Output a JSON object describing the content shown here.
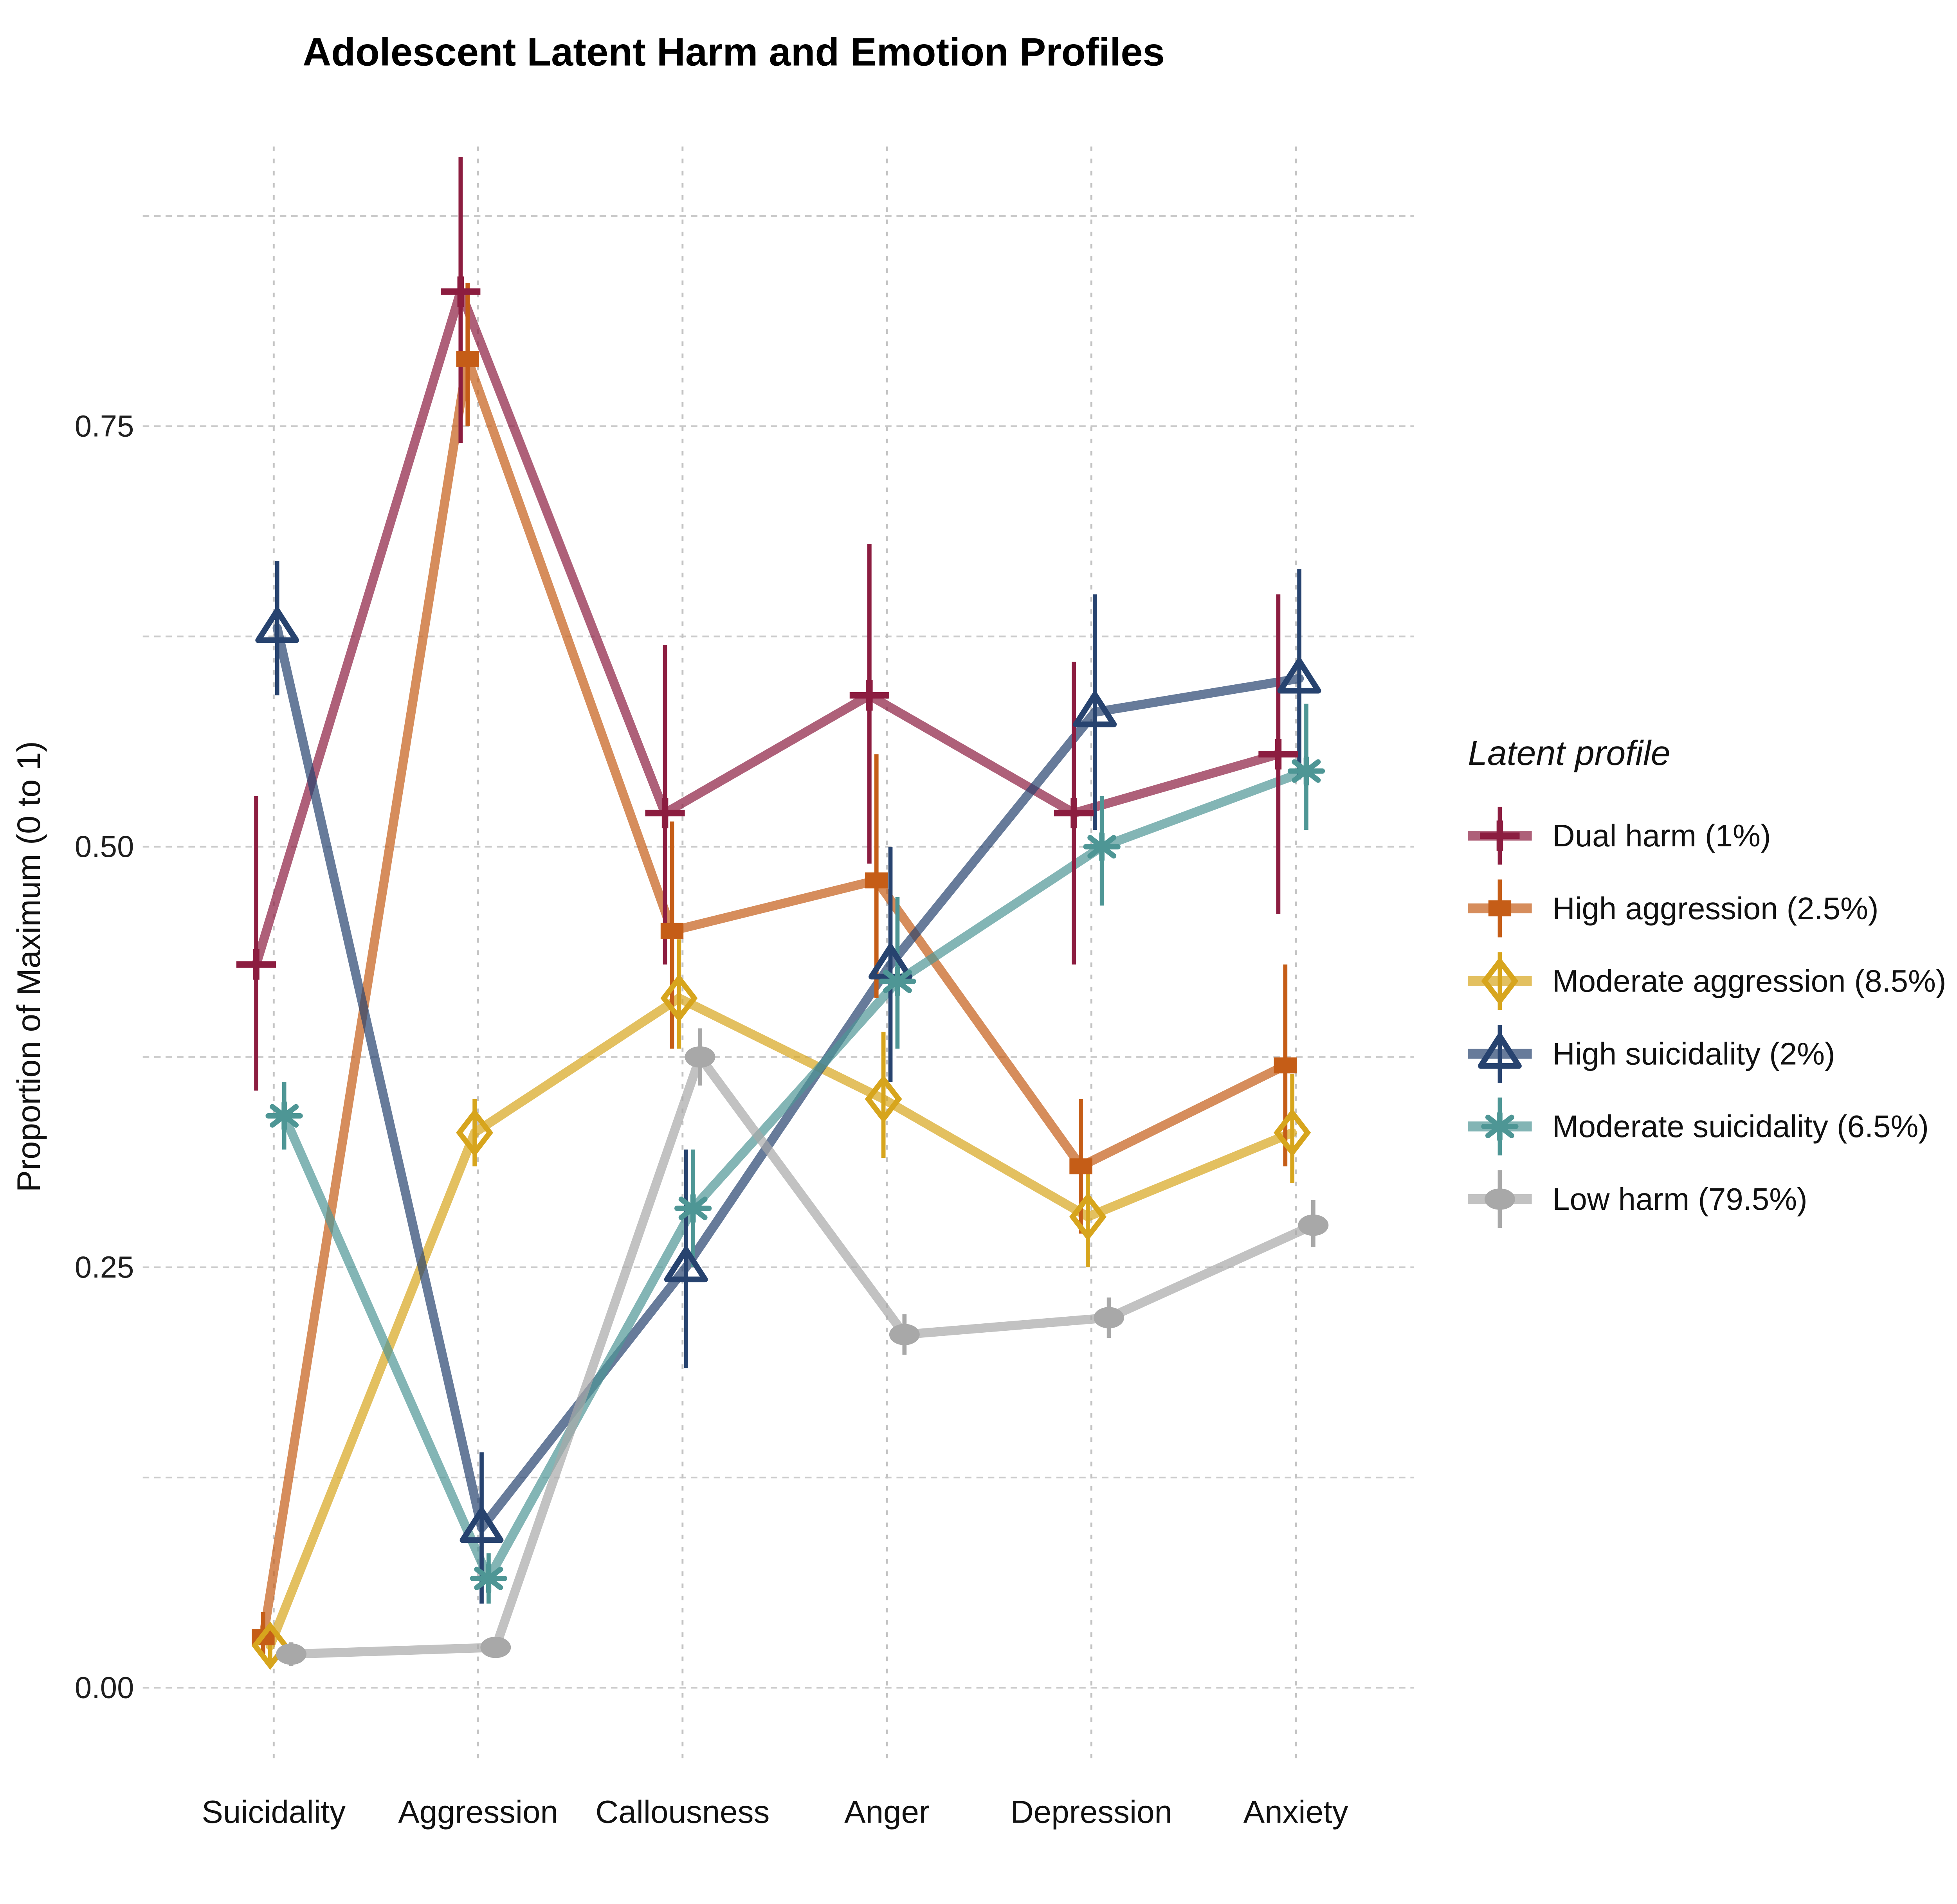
{
  "chart_data": {
    "type": "line",
    "title": "Adolescent Latent Harm and Emotion Profiles",
    "xlabel": "",
    "ylabel": "Proportion of Maximum (0 to 1)",
    "categories": [
      "Suicidality",
      "Aggression",
      "Callousness",
      "Anger",
      "Depression",
      "Anxiety"
    ],
    "y_ticks": [
      {
        "value": 0.0,
        "label": "0.00"
      },
      {
        "value": 0.25,
        "label": "0.25"
      },
      {
        "value": 0.5,
        "label": "0.50"
      },
      {
        "value": 0.75,
        "label": "0.75"
      }
    ],
    "ylim": [
      -0.04,
      0.92
    ],
    "gridlines": {
      "horizontal_step": 0.125,
      "horizontal_max": 0.875,
      "style": "dashed",
      "color_horizontal": "#cbcbcb",
      "color_vertical": "#c3c3c3"
    },
    "legend_title": "Latent profile",
    "legend_position": "right",
    "error_bars": true,
    "series": [
      {
        "name": "Dual harm (1%)",
        "marker": "plus",
        "color": "#8C1D40",
        "values": [
          0.43,
          0.83,
          0.52,
          0.59,
          0.52,
          0.555
        ],
        "ci_low": [
          0.355,
          0.74,
          0.43,
          0.49,
          0.43,
          0.46
        ],
        "ci_high": [
          0.53,
          0.91,
          0.62,
          0.68,
          0.61,
          0.65
        ]
      },
      {
        "name": "High aggression (2.5%)",
        "marker": "square",
        "color": "#C55D17",
        "values": [
          0.03,
          0.79,
          0.45,
          0.48,
          0.31,
          0.37
        ],
        "ci_low": [
          0.02,
          0.75,
          0.38,
          0.41,
          0.27,
          0.31
        ],
        "ci_high": [
          0.045,
          0.835,
          0.515,
          0.555,
          0.35,
          0.43
        ]
      },
      {
        "name": "Moderate aggression (8.5%)",
        "marker": "diamond-open",
        "color": "#D7A51D",
        "values": [
          0.025,
          0.33,
          0.41,
          0.35,
          0.28,
          0.33
        ],
        "ci_low": [
          0.015,
          0.31,
          0.38,
          0.315,
          0.25,
          0.3
        ],
        "ci_high": [
          0.035,
          0.35,
          0.445,
          0.39,
          0.31,
          0.365
        ]
      },
      {
        "name": "High suicidality (2%)",
        "marker": "triangle-open",
        "color": "#27436F",
        "values": [
          0.63,
          0.095,
          0.25,
          0.43,
          0.58,
          0.6
        ],
        "ci_low": [
          0.59,
          0.05,
          0.19,
          0.36,
          0.51,
          0.54
        ],
        "ci_high": [
          0.67,
          0.14,
          0.32,
          0.5,
          0.65,
          0.665
        ]
      },
      {
        "name": "Moderate suicidality (6.5%)",
        "marker": "asterisk",
        "color": "#4E9695",
        "values": [
          0.34,
          0.065,
          0.285,
          0.42,
          0.5,
          0.545
        ],
        "ci_low": [
          0.32,
          0.05,
          0.25,
          0.38,
          0.465,
          0.51
        ],
        "ci_high": [
          0.36,
          0.08,
          0.32,
          0.47,
          0.53,
          0.585
        ]
      },
      {
        "name": "Low harm (79.5%)",
        "marker": "circle",
        "color": "#A8A8A8",
        "values": [
          0.02,
          0.024,
          0.375,
          0.21,
          0.22,
          0.275
        ],
        "ci_low": [
          0.013,
          0.018,
          0.358,
          0.198,
          0.208,
          0.262
        ],
        "ci_high": [
          0.027,
          0.03,
          0.392,
          0.222,
          0.232,
          0.29
        ]
      }
    ]
  }
}
